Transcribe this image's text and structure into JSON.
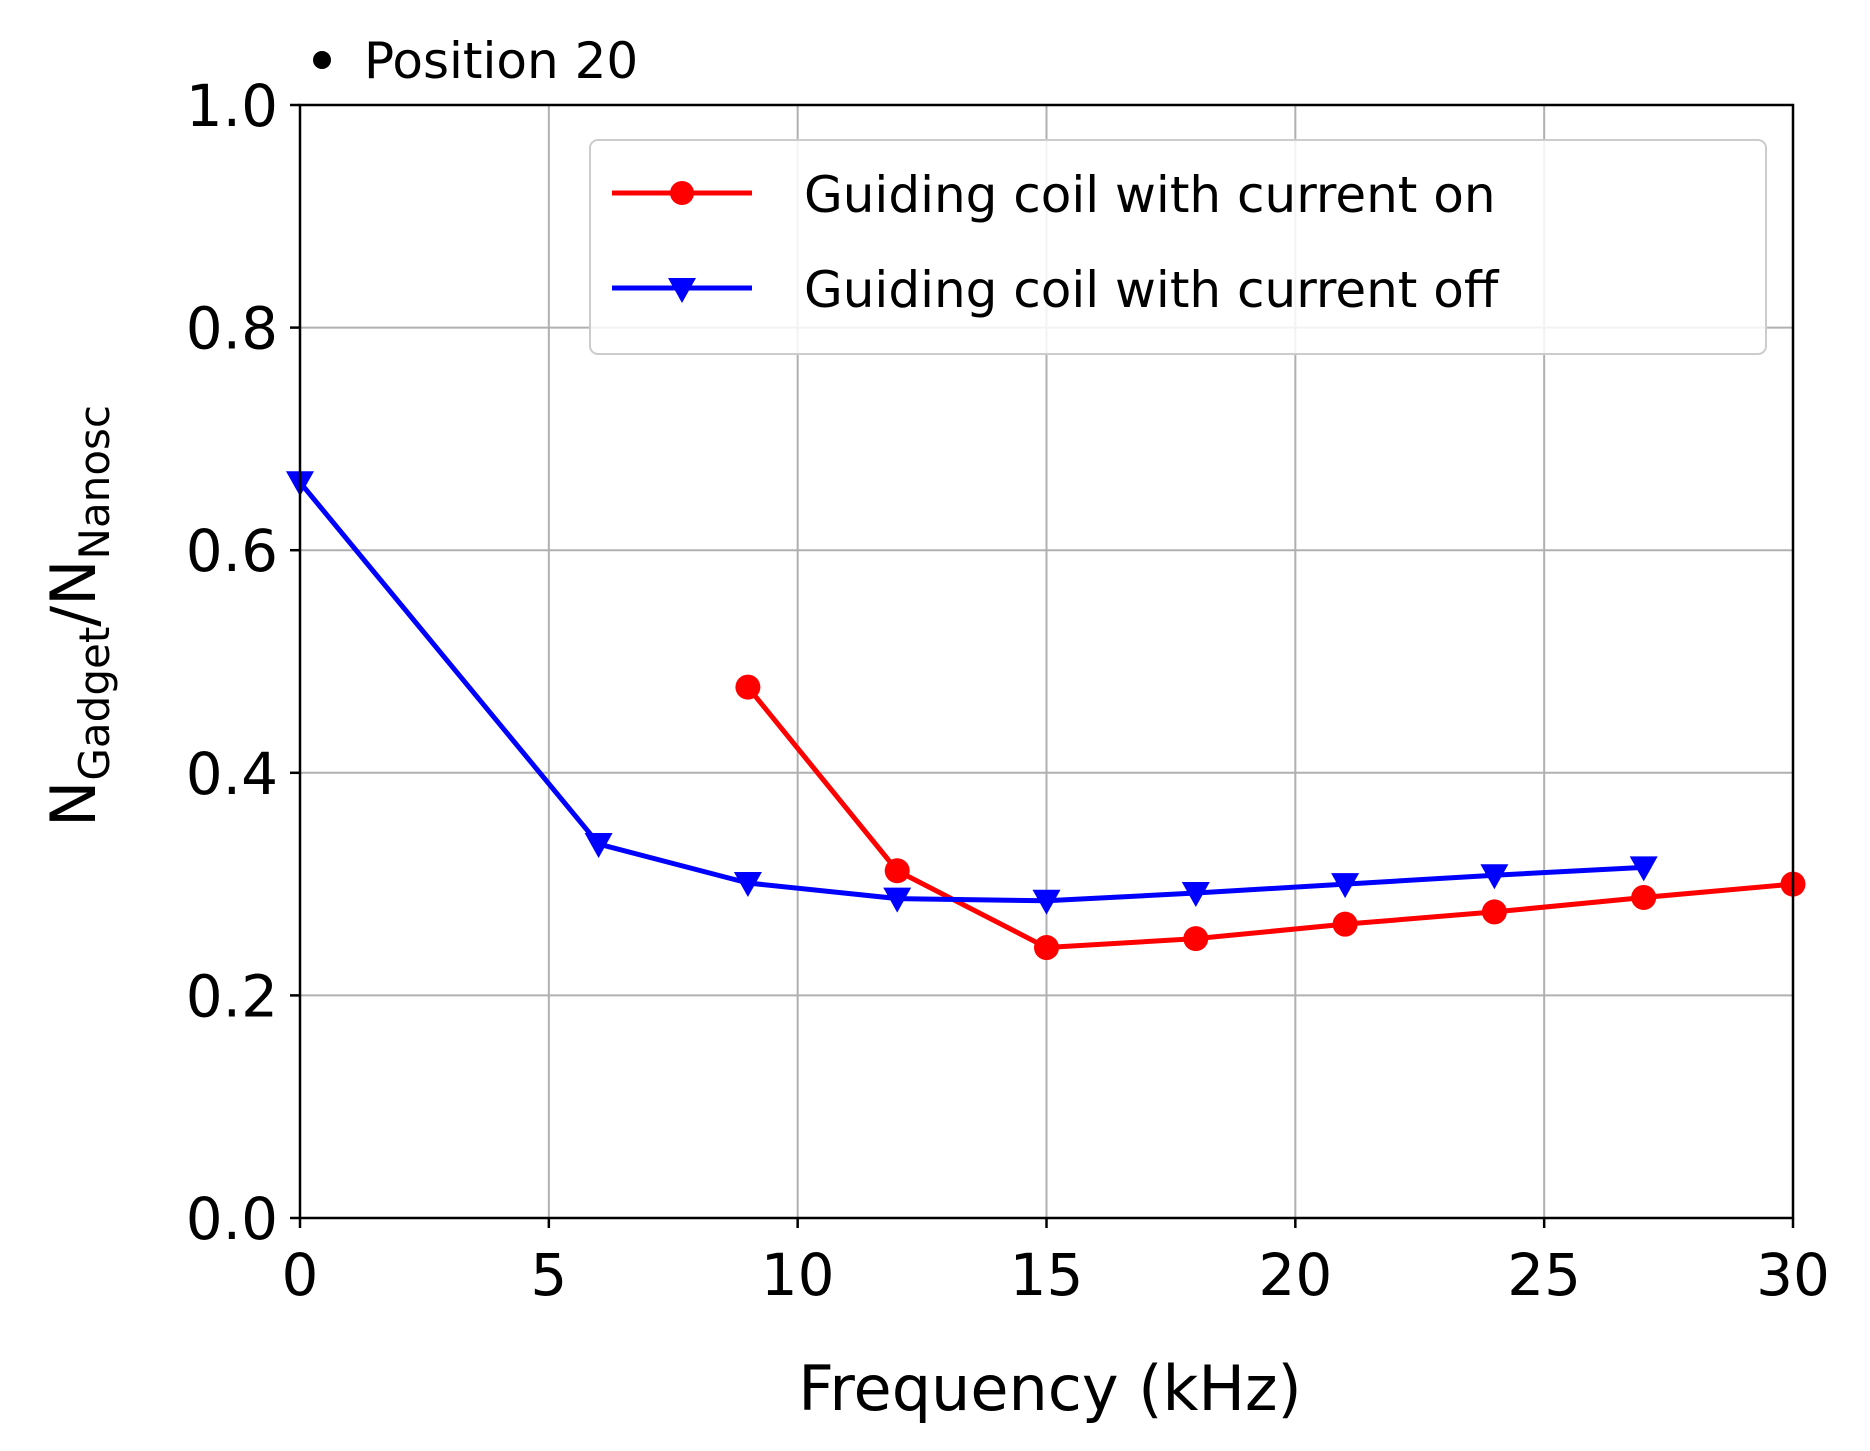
{
  "chart_data": {
    "type": "line",
    "annotation": "Position 20",
    "xlabel": "Frequency (kHz)",
    "ylabel": {
      "main": "N",
      "sub1": "Gadget",
      "sep": "/N",
      "sub2": "Nanosc"
    },
    "xlim": [
      0,
      30
    ],
    "ylim": [
      0.0,
      1.0
    ],
    "xticks": [
      0,
      5,
      10,
      15,
      20,
      25,
      30
    ],
    "xtick_labels": [
      "0",
      "5",
      "10",
      "15",
      "20",
      "25",
      "30"
    ],
    "yticks": [
      0.0,
      0.2,
      0.4,
      0.6,
      0.8,
      1.0
    ],
    "ytick_labels": [
      "0.0",
      "0.2",
      "0.4",
      "0.6",
      "0.8",
      "1.0"
    ],
    "grid": true,
    "legend_position": "top-right",
    "series": [
      {
        "name": "Guiding coil with current on",
        "color": "#ff0000",
        "marker": "circle",
        "x": [
          9,
          12,
          15,
          18,
          21,
          24,
          27,
          30
        ],
        "y": [
          0.477,
          0.312,
          0.243,
          0.251,
          0.264,
          0.275,
          0.288,
          0.3
        ]
      },
      {
        "name": "Guiding coil with current off",
        "color": "#0000ff",
        "marker": "triangle-down",
        "x": [
          0,
          6,
          9,
          12,
          15,
          18,
          21,
          24,
          27
        ],
        "y": [
          0.661,
          0.336,
          0.301,
          0.287,
          0.285,
          0.292,
          0.3,
          0.308,
          0.315
        ]
      }
    ]
  }
}
